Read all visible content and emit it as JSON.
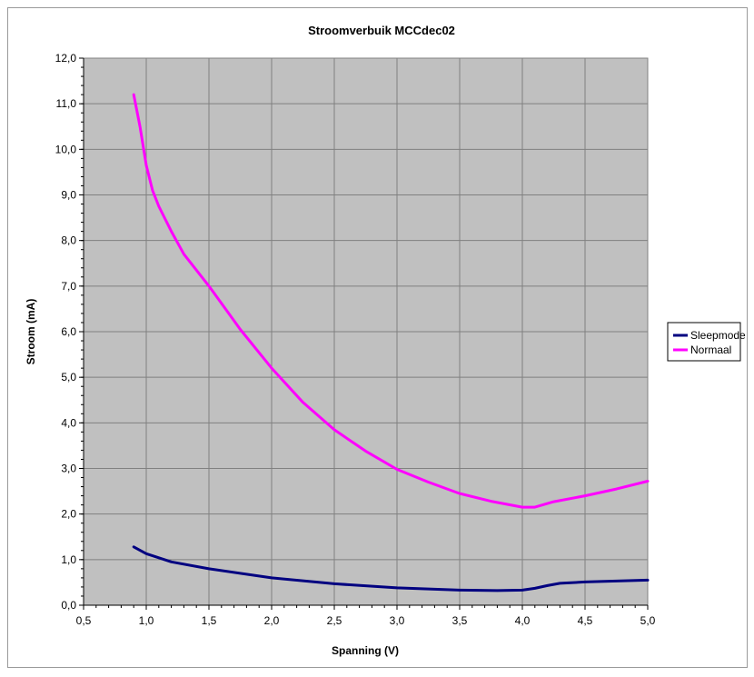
{
  "chart_data": {
    "type": "line",
    "title": "Stroomverbuik MCCdec02",
    "xlabel": "Spanning (V)",
    "ylabel": "Stroom (mA)",
    "xlim": [
      0.5,
      5.0
    ],
    "ylim": [
      0.0,
      12.0
    ],
    "x_ticks": [
      "0,5",
      "1,0",
      "1,5",
      "2,0",
      "2,5",
      "3,0",
      "3,5",
      "4,0",
      "4,5",
      "5,0"
    ],
    "y_ticks": [
      "0,0",
      "1,0",
      "2,0",
      "3,0",
      "4,0",
      "5,0",
      "6,0",
      "7,0",
      "8,0",
      "9,0",
      "10,0",
      "11,0",
      "12,0"
    ],
    "grid": true,
    "plot_background": "#c0c0c0",
    "legend_position": "right",
    "series": [
      {
        "name": "Sleepmode",
        "color": "#000080",
        "x": [
          0.9,
          1.0,
          1.2,
          1.5,
          2.0,
          2.5,
          3.0,
          3.5,
          3.8,
          4.0,
          4.1,
          4.2,
          4.3,
          4.5,
          5.0
        ],
        "y": [
          1.28,
          1.13,
          0.95,
          0.8,
          0.6,
          0.47,
          0.38,
          0.33,
          0.32,
          0.33,
          0.37,
          0.43,
          0.48,
          0.51,
          0.55
        ]
      },
      {
        "name": "Normaal",
        "color": "#ff00ff",
        "x": [
          0.9,
          0.95,
          1.0,
          1.05,
          1.1,
          1.2,
          1.3,
          1.5,
          1.75,
          2.0,
          2.25,
          2.5,
          2.75,
          3.0,
          3.25,
          3.5,
          3.75,
          4.0,
          4.1,
          4.25,
          4.5,
          4.75,
          5.0
        ],
        "y": [
          11.2,
          10.5,
          9.65,
          9.1,
          8.75,
          8.2,
          7.7,
          7.0,
          6.05,
          5.2,
          4.45,
          3.85,
          3.38,
          2.98,
          2.7,
          2.45,
          2.28,
          2.15,
          2.15,
          2.27,
          2.4,
          2.55,
          2.72
        ]
      }
    ]
  }
}
